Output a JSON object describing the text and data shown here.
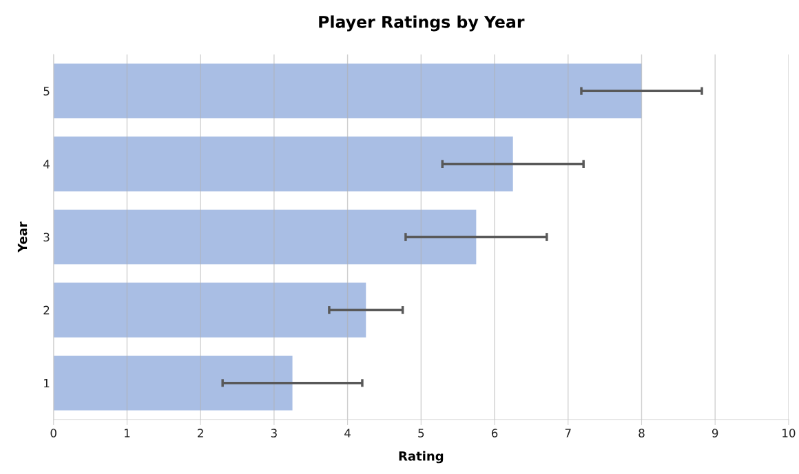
{
  "chart_data": {
    "type": "bar",
    "orientation": "horizontal",
    "title": "Player Ratings by Year",
    "xlabel": "Rating",
    "ylabel": "Year",
    "categories": [
      "5",
      "4",
      "3",
      "2",
      "1"
    ],
    "values": [
      8.0,
      6.25,
      5.75,
      4.25,
      3.25
    ],
    "errors": [
      0.82,
      0.96,
      0.96,
      0.5,
      0.95
    ],
    "color": "#a4bae3",
    "xlim": [
      0,
      10
    ],
    "xticks": [
      0,
      1,
      2,
      3,
      4,
      5,
      6,
      7,
      8,
      9,
      10
    ],
    "grid": "x"
  }
}
